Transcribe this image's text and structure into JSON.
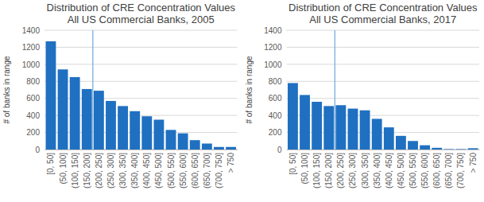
{
  "chart_data": [
    {
      "type": "bar",
      "title": "Distribution of CRE Concentration Values",
      "subtitle": "All US Commercial Banks, 2005",
      "y_label": "# of banks in range",
      "categories": [
        "[0, 50]",
        "(50, 100]",
        "(100, 150]",
        "(150, 200]",
        "(200, 250]",
        "(250, 300]",
        "(300, 350]",
        "(350, 400]",
        "(400, 450]",
        "(450, 500]",
        "(500, 550]",
        "(550, 600]",
        "(600, 650]",
        "(650, 700]",
        "(700, 750]",
        "> 750"
      ],
      "values": [
        1270,
        940,
        850,
        710,
        690,
        570,
        510,
        450,
        390,
        350,
        230,
        190,
        110,
        70,
        30,
        30
      ],
      "color": "#1f70c1",
      "ylim": [
        0,
        1400
      ],
      "yticks": [
        0,
        200,
        400,
        600,
        800,
        1000,
        1200,
        1400
      ],
      "grid": true,
      "reference_line": {
        "after": "(150, 200]"
      }
    },
    {
      "type": "bar",
      "title": "Distribution of CRE Concentration Values",
      "subtitle": "All US Commercial Banks, 2017",
      "y_label": "# of banks in range",
      "categories": [
        "[0, 50]",
        "(50, 100]",
        "(100, 150]",
        "(150, 200]",
        "(200, 250]",
        "(250, 300]",
        "(300, 350]",
        "(350, 400]",
        "(400, 450]",
        "(450, 500]",
        "(500, 550]",
        "(550, 600]",
        "(600, 650]",
        "(650, 700]",
        "(700, 750]",
        "> 750"
      ],
      "values": [
        780,
        640,
        560,
        510,
        520,
        480,
        460,
        360,
        260,
        160,
        100,
        50,
        20,
        5,
        5,
        15
      ],
      "color": "#1f70c1",
      "ylim": [
        0,
        1400
      ],
      "yticks": [
        0,
        200,
        400,
        600,
        800,
        1000,
        1200,
        1400
      ],
      "grid": true,
      "reference_line": {
        "after": "(150, 200]"
      }
    }
  ]
}
